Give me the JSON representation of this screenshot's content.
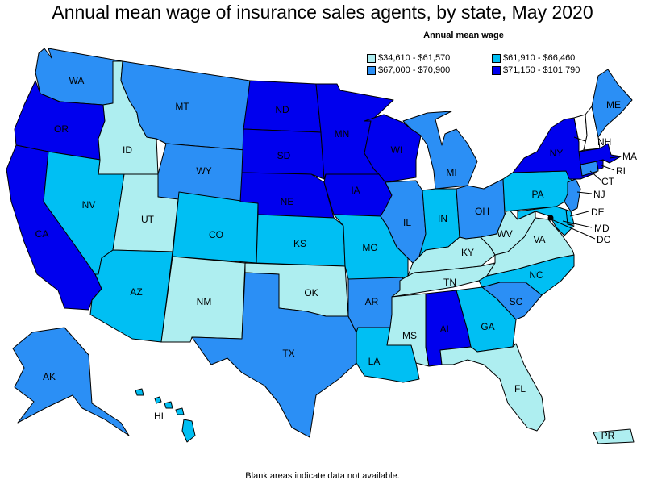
{
  "title": "Annual mean wage of insurance sales agents, by state, May 2020",
  "legend": {
    "title": "Annual mean wage",
    "items": [
      {
        "label": "$34,610 - $61,570",
        "color": "#aeeef0"
      },
      {
        "label": "$61,910 - $66,460",
        "color": "#00bff3"
      },
      {
        "label": "$67,000 - $70,900",
        "color": "#2b8ff5"
      },
      {
        "label": "$71,150 - $101,790",
        "color": "#0000ee"
      }
    ]
  },
  "footnote": "Blank areas indicate data not available.",
  "states": [
    {
      "abbr": "WA",
      "bin": 2
    },
    {
      "abbr": "OR",
      "bin": 3
    },
    {
      "abbr": "CA",
      "bin": 3
    },
    {
      "abbr": "ID",
      "bin": 0
    },
    {
      "abbr": "NV",
      "bin": 1
    },
    {
      "abbr": "UT",
      "bin": 0
    },
    {
      "abbr": "AZ",
      "bin": 1
    },
    {
      "abbr": "MT",
      "bin": 2
    },
    {
      "abbr": "WY",
      "bin": 2
    },
    {
      "abbr": "CO",
      "bin": 1
    },
    {
      "abbr": "NM",
      "bin": 0
    },
    {
      "abbr": "ND",
      "bin": 3
    },
    {
      "abbr": "SD",
      "bin": 3
    },
    {
      "abbr": "NE",
      "bin": 3
    },
    {
      "abbr": "KS",
      "bin": 1
    },
    {
      "abbr": "OK",
      "bin": 0
    },
    {
      "abbr": "TX",
      "bin": 2
    },
    {
      "abbr": "MN",
      "bin": 3
    },
    {
      "abbr": "IA",
      "bin": 3
    },
    {
      "abbr": "MO",
      "bin": 1
    },
    {
      "abbr": "AR",
      "bin": 2
    },
    {
      "abbr": "LA",
      "bin": 1
    },
    {
      "abbr": "WI",
      "bin": 3
    },
    {
      "abbr": "IL",
      "bin": 2
    },
    {
      "abbr": "MI",
      "bin": 2
    },
    {
      "abbr": "IN",
      "bin": 1
    },
    {
      "abbr": "OH",
      "bin": 2
    },
    {
      "abbr": "KY",
      "bin": 0
    },
    {
      "abbr": "TN",
      "bin": 0
    },
    {
      "abbr": "MS",
      "bin": 0
    },
    {
      "abbr": "AL",
      "bin": 3
    },
    {
      "abbr": "GA",
      "bin": 1
    },
    {
      "abbr": "FL",
      "bin": 0
    },
    {
      "abbr": "SC",
      "bin": 2
    },
    {
      "abbr": "NC",
      "bin": 1
    },
    {
      "abbr": "VA",
      "bin": 0
    },
    {
      "abbr": "WV",
      "bin": 0
    },
    {
      "abbr": "PA",
      "bin": 1
    },
    {
      "abbr": "NY",
      "bin": 3
    },
    {
      "abbr": "ME",
      "bin": 2
    },
    {
      "abbr": "NH",
      "bin": null
    },
    {
      "abbr": "VT",
      "bin": null
    },
    {
      "abbr": "MA",
      "bin": 3
    },
    {
      "abbr": "RI",
      "bin": 3
    },
    {
      "abbr": "CT",
      "bin": 2
    },
    {
      "abbr": "NJ",
      "bin": 2
    },
    {
      "abbr": "DE",
      "bin": 1
    },
    {
      "abbr": "MD",
      "bin": 1
    },
    {
      "abbr": "DC",
      "bin": 0
    },
    {
      "abbr": "AK",
      "bin": 2
    },
    {
      "abbr": "HI",
      "bin": 1
    },
    {
      "abbr": "PR",
      "bin": 0
    }
  ]
}
